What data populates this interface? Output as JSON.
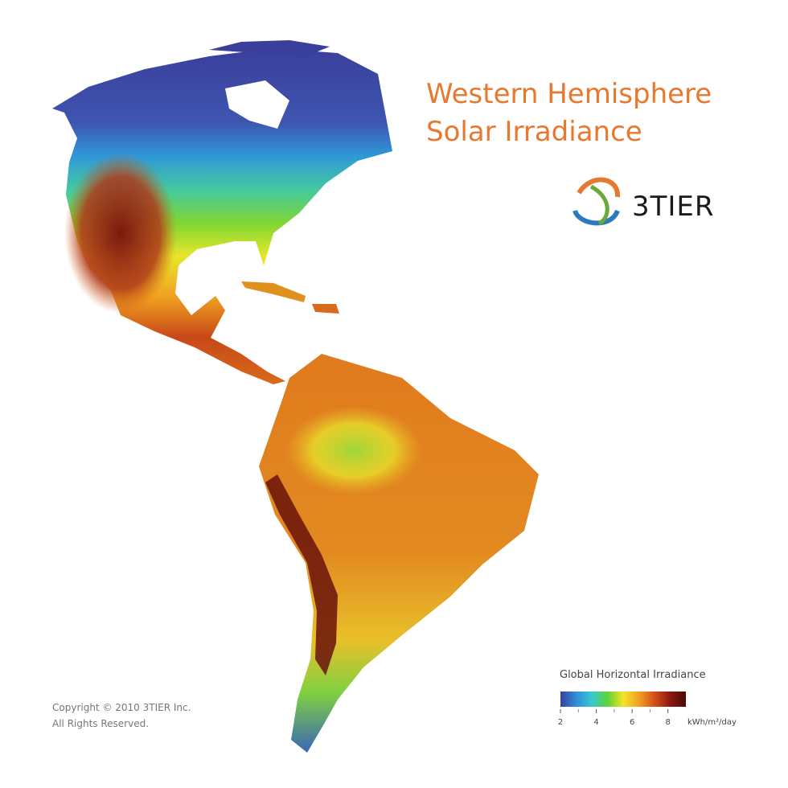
{
  "header": {
    "title_lines": [
      "Western Hemisphere",
      "Solar Irradiance"
    ],
    "logo": "3TIER"
  },
  "legend": {
    "title": "Global Horizontal Irradiance",
    "lim": [
      2,
      9
    ],
    "ticks": [
      2,
      4,
      6,
      8
    ],
    "minor_ticks": [
      3,
      5,
      7
    ],
    "unit": "kWh/m²/day",
    "colors": [
      "#3b3f9e",
      "#2f8fd8",
      "#38c7d0",
      "#5fd23a",
      "#f2e526",
      "#f0a020",
      "#d4501a",
      "#8a1a10",
      "#4a0a08"
    ]
  },
  "footer": {
    "copyright": [
      "Copyright © 2010 3TIER Inc.",
      "All Rights Reserved."
    ]
  }
}
